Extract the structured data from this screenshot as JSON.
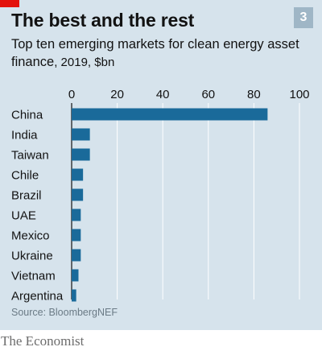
{
  "header": {
    "title": "The best and the rest",
    "badge": "3",
    "subtitle_main": "Top ten emerging markets for clean energy asset finance",
    "subtitle_unit": ", 2019, $bn"
  },
  "source": "Source: BloombergNEF",
  "brand": "The Economist",
  "colors": {
    "bar": "#1a6a9a",
    "background": "#d6e3ec",
    "accent": "#e3120b",
    "badge": "#9fb6c6"
  },
  "chart_data": {
    "type": "bar",
    "orientation": "horizontal",
    "categories": [
      "China",
      "India",
      "Taiwan",
      "Chile",
      "Brazil",
      "UAE",
      "Mexico",
      "Ukraine",
      "Vietnam",
      "Argentina"
    ],
    "values": [
      86,
      8,
      8,
      5,
      5,
      4,
      4,
      4,
      3,
      2
    ],
    "xlim": [
      0,
      100
    ],
    "xticks": [
      0,
      20,
      40,
      60,
      80,
      100
    ],
    "xaxis_position": "top",
    "grid": true
  }
}
